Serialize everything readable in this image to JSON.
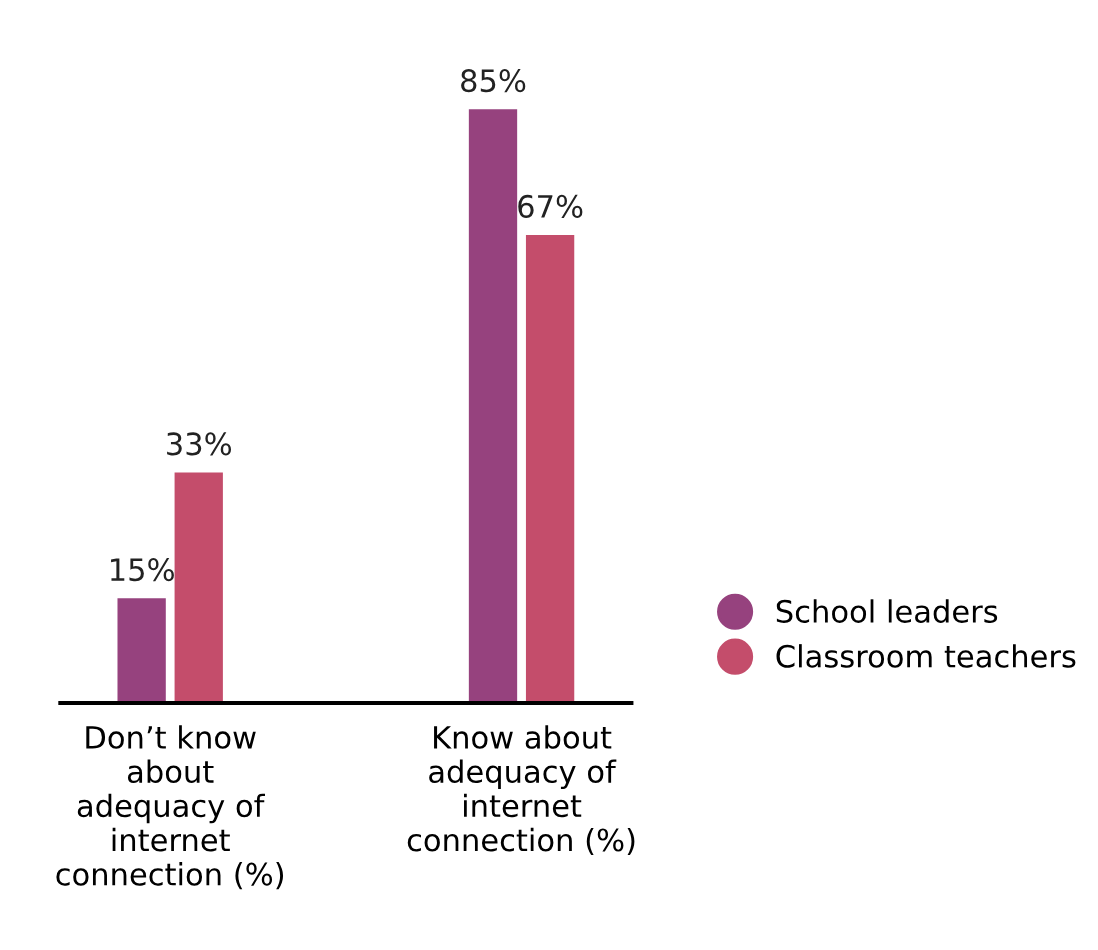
{
  "chart_data": {
    "type": "bar",
    "categories": [
      "Don’t know\nabout\nadequacy of\ninternet\nconnection (%)",
      "Know about\nadequacy of\ninternet\nconnection (%)"
    ],
    "series": [
      {
        "name": "School leaders",
        "color": "#96427e",
        "values": [
          15,
          85
        ],
        "value_labels": [
          "15%",
          "85%"
        ]
      },
      {
        "name": "Classroom teachers",
        "color": "#c44d6b",
        "values": [
          33,
          67
        ],
        "value_labels": [
          "33%",
          "67%"
        ]
      }
    ],
    "legend": "right",
    "grid": false
  }
}
